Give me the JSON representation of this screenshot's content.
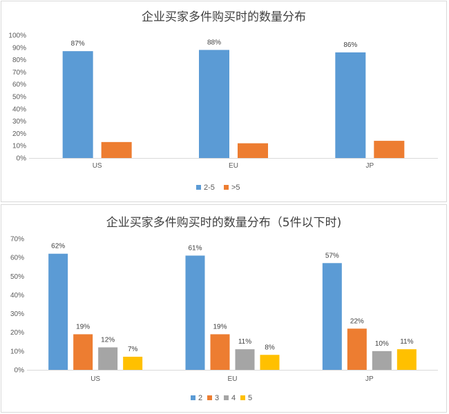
{
  "chart_data": [
    {
      "type": "bar",
      "title": "企业买家多件购买时的数量分布",
      "categories": [
        "US",
        "EU",
        "JP"
      ],
      "series": [
        {
          "name": "2-5",
          "values": [
            87,
            88,
            86
          ],
          "labels": [
            "87%",
            "88%",
            "86%"
          ],
          "color": "#5b9bd5"
        },
        {
          "name": ">5",
          "values": [
            13,
            12,
            14
          ],
          "labels": [
            "",
            "",
            ""
          ],
          "color": "#ed7d31"
        }
      ],
      "ylim": [
        0,
        100
      ],
      "yticks": [
        0,
        10,
        20,
        30,
        40,
        50,
        60,
        70,
        80,
        90,
        100
      ],
      "ytick_labels": [
        "0%",
        "10%",
        "20%",
        "30%",
        "40%",
        "50%",
        "60%",
        "70%",
        "80%",
        "90%",
        "100%"
      ],
      "xlabel": "",
      "ylabel": "",
      "grid": false,
      "legend": "bottom"
    },
    {
      "type": "bar",
      "title": "企业买家多件购买时的数量分布（5件以下时)",
      "categories": [
        "US",
        "EU",
        "JP"
      ],
      "series": [
        {
          "name": "2",
          "values": [
            62,
            61,
            57
          ],
          "labels": [
            "62%",
            "61%",
            "57%"
          ],
          "color": "#5b9bd5"
        },
        {
          "name": "3",
          "values": [
            19,
            19,
            22
          ],
          "labels": [
            "19%",
            "19%",
            "22%"
          ],
          "color": "#ed7d31"
        },
        {
          "name": "4",
          "values": [
            12,
            11,
            10
          ],
          "labels": [
            "12%",
            "11%",
            "10%"
          ],
          "color": "#a5a5a5"
        },
        {
          "name": "5",
          "values": [
            7,
            8,
            11
          ],
          "labels": [
            "7%",
            "8%",
            "11%"
          ],
          "color": "#ffc000"
        }
      ],
      "ylim": [
        0,
        70
      ],
      "yticks": [
        0,
        10,
        20,
        30,
        40,
        50,
        60,
        70
      ],
      "ytick_labels": [
        "0%",
        "10%",
        "20%",
        "30%",
        "40%",
        "50%",
        "60%",
        "70%"
      ],
      "xlabel": "",
      "ylabel": "",
      "grid": false,
      "legend": "bottom"
    }
  ]
}
